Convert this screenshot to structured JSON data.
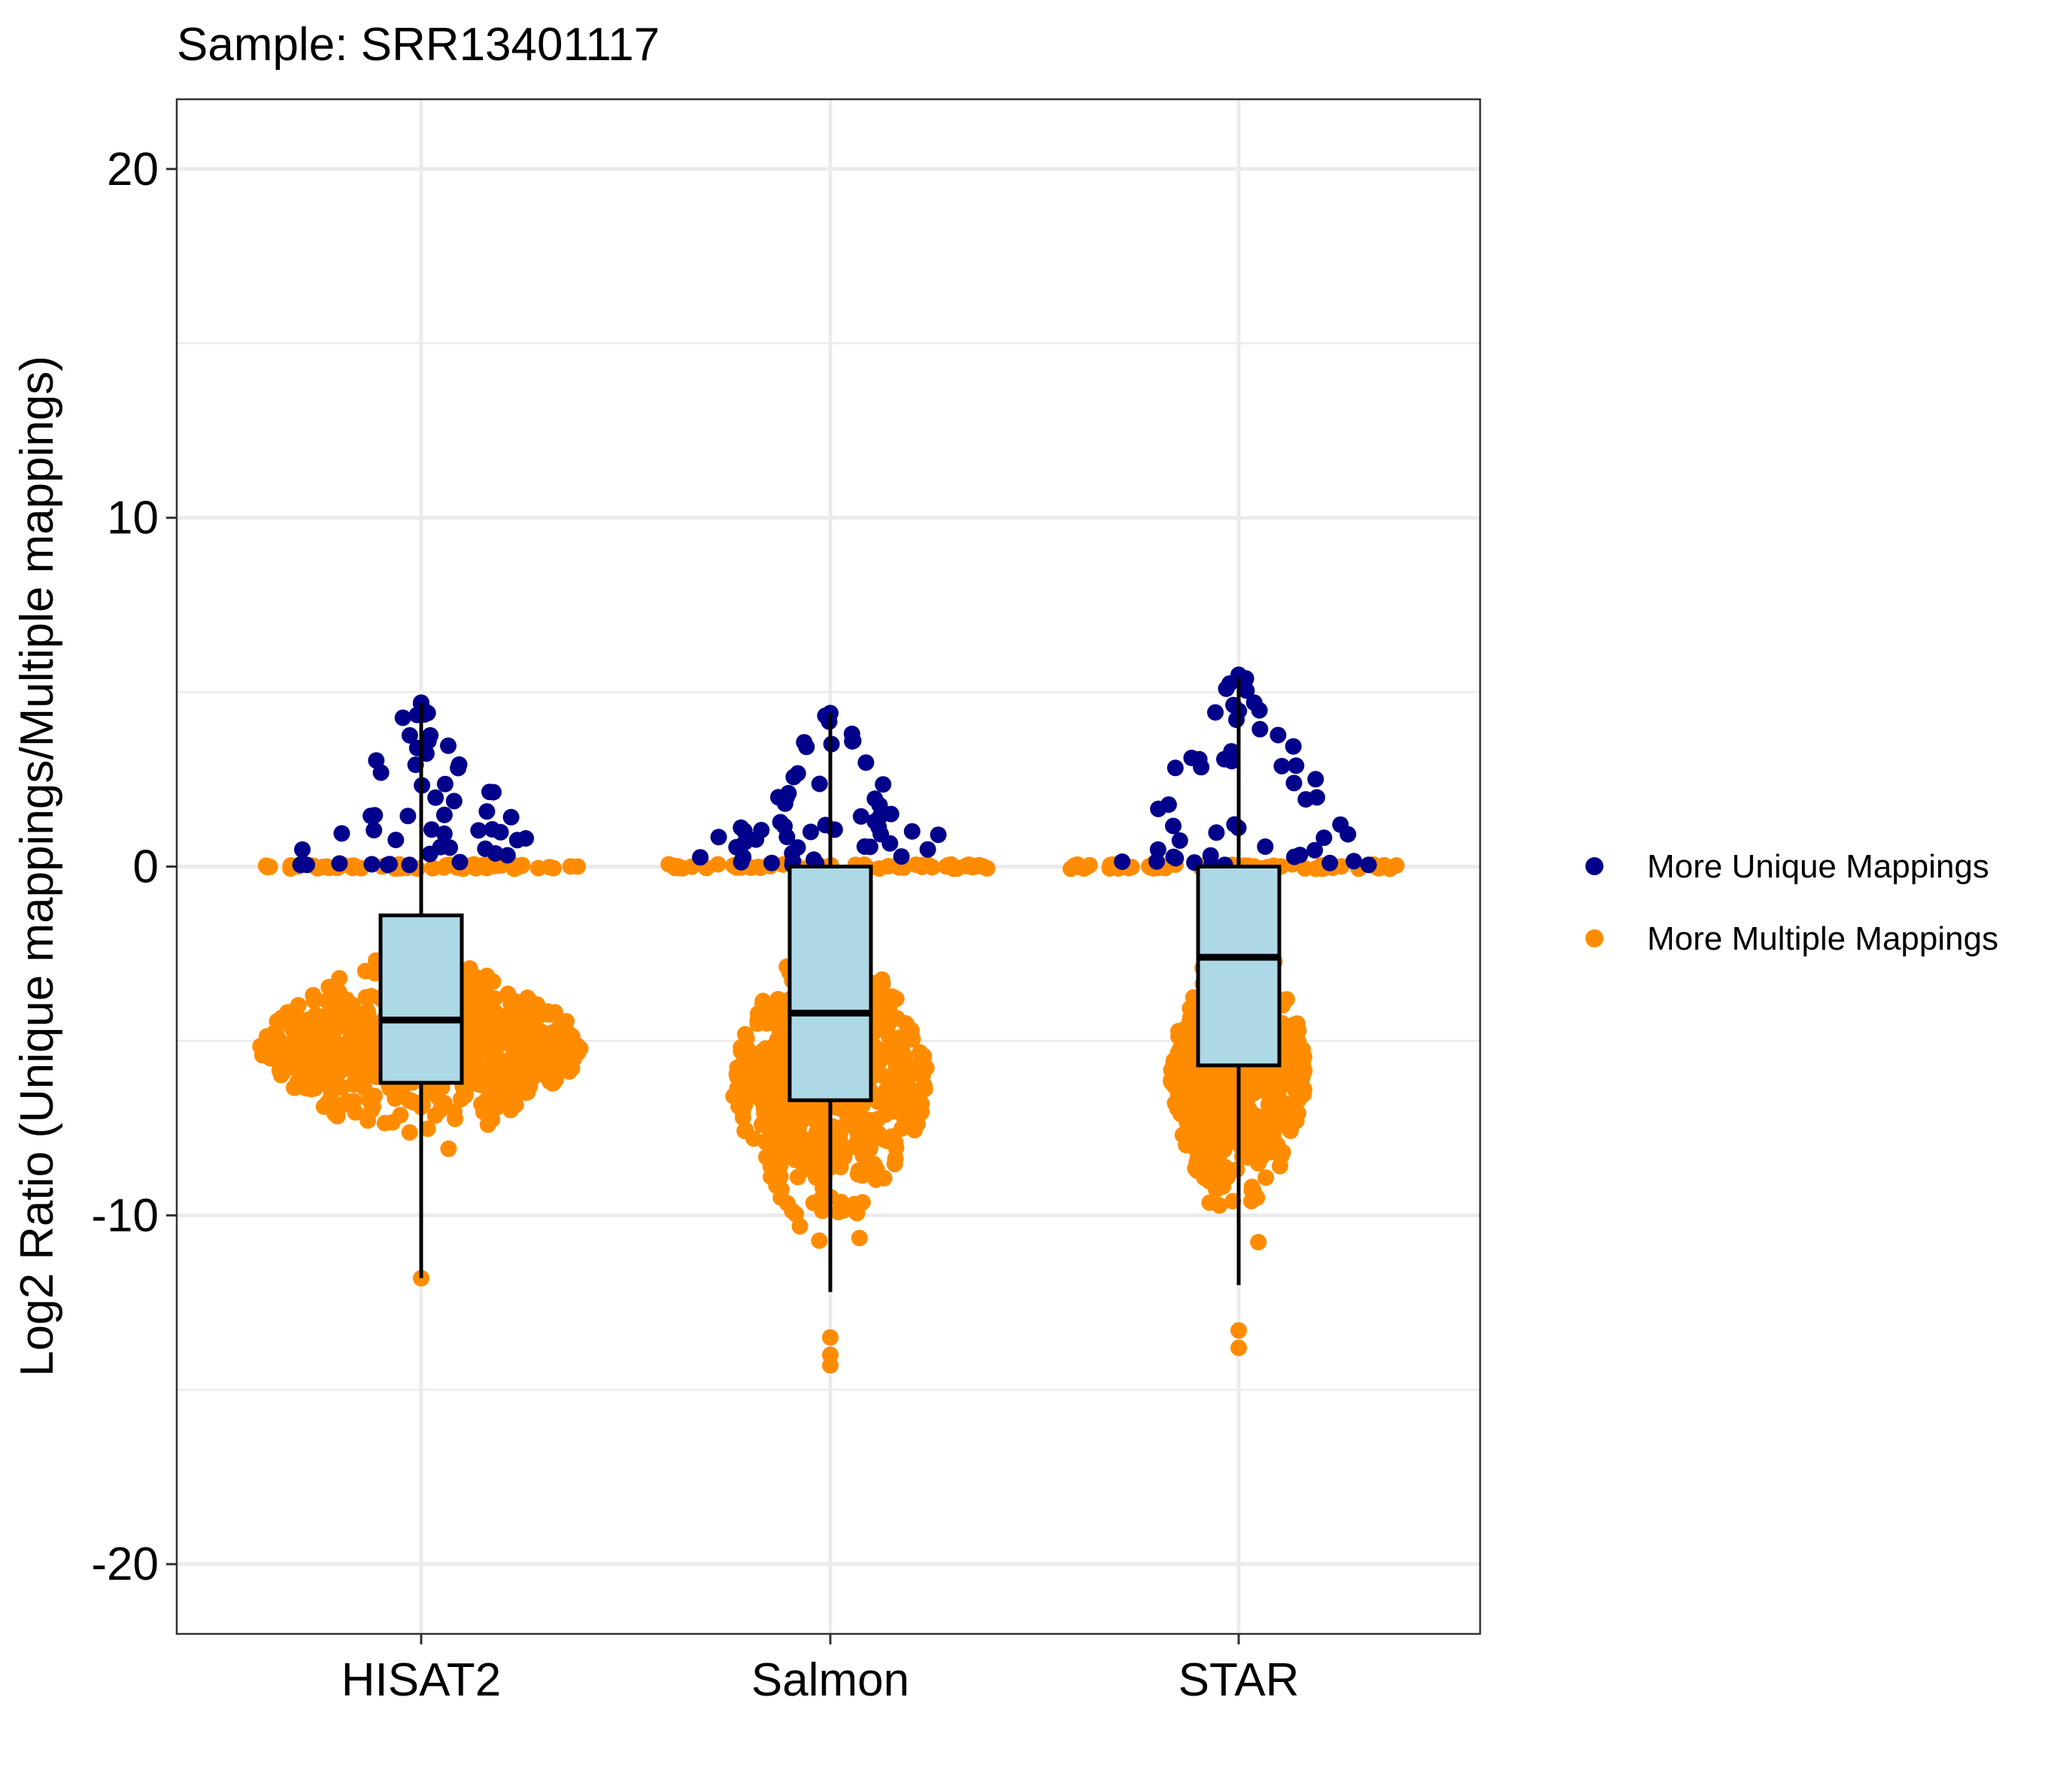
{
  "chart_data": {
    "type": "box-beeswarm",
    "title": "Sample: SRR13401117",
    "xlabel": "",
    "ylabel": "Log2 Ratio (Unique mappings/Multiple mappings)",
    "ylim": [
      -22,
      22
    ],
    "yticks": [
      20,
      10,
      0,
      -10,
      -20
    ],
    "ytick_labels": [
      "20",
      "10",
      "0",
      "-10",
      "-20"
    ],
    "grid": true,
    "categories": [
      "HISAT2",
      "Salmon",
      "STAR"
    ],
    "box_fill": "#add8e6",
    "boxes": [
      {
        "category": "HISAT2",
        "q1": -6.2,
        "median": -4.4,
        "q3": -1.4,
        "whisker_low": -11.8,
        "whisker_high": 4.7
      },
      {
        "category": "Salmon",
        "q1": -6.7,
        "median": -4.2,
        "q3": 0.0,
        "whisker_low": -12.2,
        "whisker_high": 4.4
      },
      {
        "category": "STAR",
        "q1": -5.7,
        "median": -2.6,
        "q3": 0.0,
        "whisker_low": -12.0,
        "whisker_high": 5.4
      }
    ],
    "series": [
      {
        "name": "More Unique Mappings",
        "color": "#00008b"
      },
      {
        "name": "More Multiple Mappings",
        "color": "#ff8c00"
      }
    ],
    "distribution_shape": [
      {
        "category": "HISAT2",
        "max_unique": 4.7,
        "max_multi_min": -11.8,
        "multi_outliers": [
          -11.8
        ]
      },
      {
        "category": "Salmon",
        "max_unique": 4.4,
        "max_multi_min": -14.3,
        "multi_outliers": [
          -13.5,
          -14.0,
          -14.3
        ]
      },
      {
        "category": "STAR",
        "max_unique": 5.5,
        "max_multi_min": -13.8,
        "multi_outliers": [
          -13.3,
          -13.8
        ]
      }
    ],
    "legend_position": "right"
  }
}
